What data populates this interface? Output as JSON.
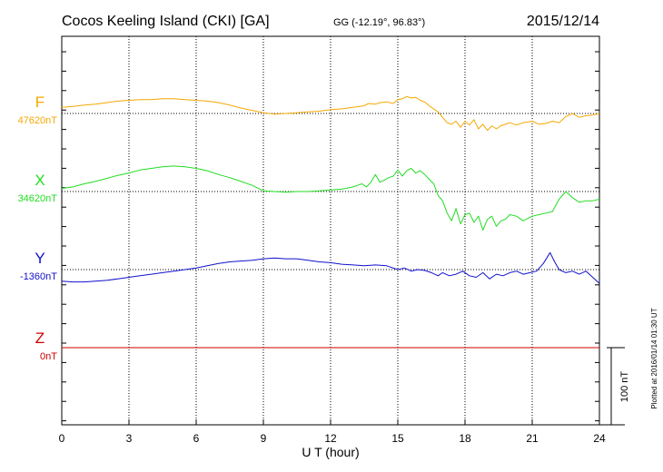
{
  "header": {
    "station": "Cocos Keeling Island (CKI)  [GA]",
    "coords": "GG (-12.19°,  96.83°)",
    "date": "2015/12/14"
  },
  "side_note": "Plotted at 2016/01/14 01:30 UT",
  "chart_data": {
    "type": "line",
    "xlabel": "U T (hour)",
    "xlim": [
      0,
      24
    ],
    "xticks": [
      "0",
      "3",
      "6",
      "9",
      "12",
      "15",
      "18",
      "21",
      "24"
    ],
    "grid": true,
    "scale_bar": {
      "label": "100 nT",
      "value_nT": 100
    },
    "series": [
      {
        "name": "F",
        "baseline_label": "47620nT",
        "color": "#f5a800",
        "x": [
          0,
          0.5,
          1,
          1.5,
          2,
          2.5,
          3,
          3.5,
          4,
          4.5,
          5,
          5.5,
          6,
          6.5,
          7,
          7.5,
          8,
          8.5,
          9,
          9.5,
          10,
          10.5,
          11,
          11.5,
          12,
          12.5,
          13,
          13.3,
          13.5,
          13.7,
          14,
          14.2,
          14.5,
          14.8,
          15,
          15.2,
          15.4,
          15.6,
          15.8,
          16,
          16.2,
          16.4,
          16.6,
          16.8,
          17,
          17.2,
          17.4,
          17.6,
          17.8,
          18,
          18.2,
          18.4,
          18.6,
          18.8,
          19,
          19.2,
          19.4,
          19.6,
          19.8,
          20,
          20.3,
          20.6,
          21,
          21.3,
          21.6,
          21.9,
          22.2,
          22.5,
          22.8,
          23.1,
          23.4,
          23.7,
          24
        ],
        "values": [
          8,
          9,
          11,
          12,
          14,
          16,
          17,
          18,
          18,
          19,
          19,
          18,
          17,
          16,
          14,
          11,
          7,
          4,
          1,
          -1,
          0,
          1,
          2,
          3,
          5,
          6,
          8,
          9,
          10,
          13,
          12,
          14,
          15,
          13,
          18,
          19,
          22,
          20,
          21,
          17,
          15,
          10,
          6,
          2,
          -5,
          -12,
          -14,
          -10,
          -18,
          -10,
          -15,
          -8,
          -20,
          -14,
          -22,
          -16,
          -20,
          -16,
          -14,
          -12,
          -15,
          -12,
          -10,
          -14,
          -13,
          -10,
          -12,
          -4,
          0,
          -5,
          -3,
          -2,
          0
        ]
      },
      {
        "name": "X",
        "baseline_label": "34620nT",
        "color": "#22dd22",
        "x": [
          0,
          0.5,
          1,
          1.5,
          2,
          2.5,
          3,
          3.5,
          4,
          4.5,
          5,
          5.5,
          6,
          6.5,
          7,
          7.5,
          8,
          8.5,
          9,
          9.5,
          10,
          10.5,
          11,
          11.5,
          12,
          12.5,
          13,
          13.2,
          13.4,
          13.6,
          13.8,
          14,
          14.2,
          14.4,
          14.6,
          14.8,
          15,
          15.2,
          15.4,
          15.6,
          15.8,
          16,
          16.2,
          16.4,
          16.6,
          16.8,
          17,
          17.2,
          17.4,
          17.6,
          17.8,
          18,
          18.2,
          18.4,
          18.6,
          18.8,
          19,
          19.2,
          19.4,
          19.6,
          19.8,
          20,
          20.3,
          20.6,
          21,
          21.3,
          21.6,
          21.9,
          22.2,
          22.5,
          22.8,
          23.1,
          23.4,
          23.7,
          24
        ],
        "values": [
          4,
          6,
          10,
          13,
          17,
          21,
          24,
          28,
          30,
          32,
          33,
          32,
          30,
          27,
          22,
          18,
          13,
          8,
          1,
          0,
          -1,
          0,
          0,
          1,
          2,
          3,
          6,
          8,
          10,
          6,
          12,
          22,
          12,
          15,
          18,
          20,
          28,
          20,
          27,
          30,
          24,
          27,
          22,
          16,
          10,
          -5,
          -12,
          -28,
          -38,
          -22,
          -42,
          -30,
          -28,
          -40,
          -32,
          -50,
          -36,
          -32,
          -45,
          -38,
          -36,
          -30,
          -32,
          -38,
          -32,
          -30,
          -28,
          -26,
          -10,
          0,
          -8,
          -14,
          -12,
          -12,
          -10
        ]
      },
      {
        "name": "Y",
        "baseline_label": "-1360nT",
        "color": "#1010cc",
        "x": [
          0,
          0.5,
          1,
          1.5,
          2,
          2.5,
          3,
          3.5,
          4,
          4.5,
          5,
          5.5,
          6,
          6.5,
          7,
          7.5,
          8,
          8.5,
          9,
          9.5,
          10,
          10.5,
          11,
          11.5,
          12,
          12.5,
          13,
          13.5,
          14,
          14.5,
          15,
          15.3,
          15.6,
          15.9,
          16.2,
          16.5,
          16.8,
          17,
          17.3,
          17.6,
          17.9,
          18.2,
          18.5,
          18.8,
          19.1,
          19.4,
          19.7,
          20,
          20.3,
          20.6,
          20.9,
          21.2,
          21.5,
          21.8,
          22,
          22.2,
          22.5,
          22.8,
          23.1,
          23.4,
          23.7,
          24
        ],
        "values": [
          -15,
          -16,
          -16,
          -15,
          -14,
          -12,
          -10,
          -8,
          -6,
          -4,
          -2,
          0,
          2,
          5,
          8,
          10,
          11,
          12,
          14,
          15,
          14,
          14,
          12,
          10,
          9,
          7,
          6,
          5,
          6,
          5,
          0,
          2,
          -2,
          0,
          -1,
          -4,
          -8,
          -4,
          -8,
          -6,
          -2,
          -8,
          -10,
          -4,
          -12,
          -6,
          -8,
          -4,
          -2,
          -6,
          -4,
          -2,
          8,
          22,
          10,
          0,
          -4,
          -2,
          -6,
          -2,
          -10,
          -18
        ]
      },
      {
        "name": "Z",
        "baseline_label": "0nT",
        "color": "#cc0000",
        "x": [
          0,
          24
        ],
        "values": [
          0,
          0
        ]
      }
    ]
  }
}
